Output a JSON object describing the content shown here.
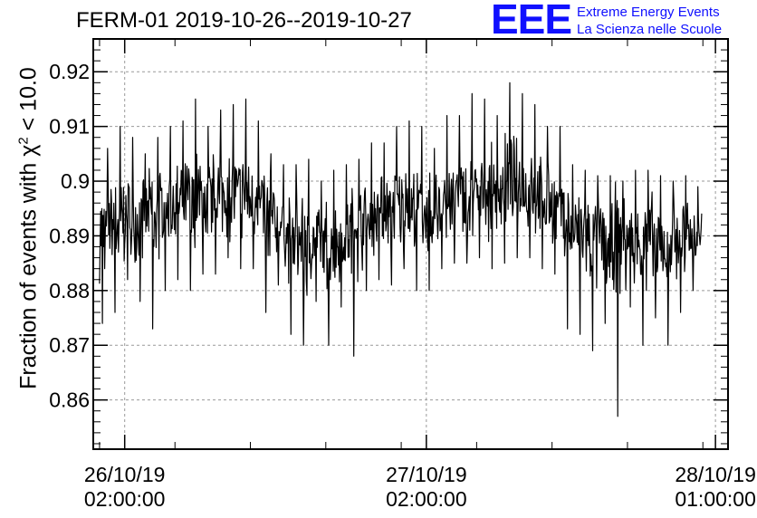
{
  "header": {
    "title": "FERM-01 2019-10-26--2019-10-27",
    "logo_text": "EEE",
    "logo_line1": "Extreme Energy Events",
    "logo_line2": "La Scienza nelle Scuole"
  },
  "colors": {
    "logo": "#1010ff",
    "series": "#000000",
    "grid": "#999999"
  },
  "chart_data": {
    "type": "line",
    "title": "FERM-01 2019-10-26--2019-10-27",
    "xlabel": "",
    "ylabel": "Fraction of events with χ² < 10.0",
    "ylabel_parts": {
      "before": "Fraction of events with χ",
      "sup": "2",
      "after": " < 10.0"
    },
    "xlim": [
      "2019-10-25T23:30:00",
      "2019-10-28T02:00:00"
    ],
    "ylim": [
      0.851,
      0.926
    ],
    "grid": true,
    "x_tick_labels": [
      {
        "x": "2019-10-26T02:00:00",
        "line1": "26/10/19",
        "line2": "02:00:00"
      },
      {
        "x": "2019-10-27T02:00:00",
        "line1": "27/10/19",
        "line2": "02:00:00"
      },
      {
        "x": "2019-10-28T01:00:00",
        "line1": "28/10/19",
        "line2": "01:00:00"
      }
    ],
    "y_ticks": [
      0.86,
      0.87,
      0.88,
      0.89,
      0.9,
      0.91,
      0.92
    ],
    "y_tick_labels": [
      "0.86",
      "0.87",
      "0.88",
      "0.89",
      "0.9",
      "0.91",
      "0.92"
    ],
    "series": [
      {
        "x": [
          "2019-10-26T00:00:00",
          "2019-10-26T01:00:00",
          "2019-10-26T02:00:00",
          "2019-10-26T03:00:00",
          "2019-10-26T04:00:00",
          "2019-10-26T05:00:00",
          "2019-10-26T06:00:00",
          "2019-10-26T07:00:00",
          "2019-10-26T08:00:00",
          "2019-10-26T09:00:00",
          "2019-10-26T10:00:00",
          "2019-10-26T11:00:00",
          "2019-10-26T12:00:00",
          "2019-10-26T13:00:00",
          "2019-10-26T14:00:00",
          "2019-10-26T15:00:00",
          "2019-10-26T16:00:00",
          "2019-10-26T17:00:00",
          "2019-10-26T18:00:00",
          "2019-10-26T19:00:00",
          "2019-10-26T20:00:00",
          "2019-10-26T21:00:00",
          "2019-10-26T22:00:00",
          "2019-10-26T23:00:00",
          "2019-10-27T00:00:00",
          "2019-10-27T01:00:00",
          "2019-10-27T02:00:00",
          "2019-10-27T03:00:00",
          "2019-10-27T04:00:00",
          "2019-10-27T05:00:00",
          "2019-10-27T06:00:00",
          "2019-10-27T07:00:00",
          "2019-10-27T08:00:00",
          "2019-10-27T09:00:00",
          "2019-10-27T10:00:00",
          "2019-10-27T11:00:00",
          "2019-10-27T12:00:00",
          "2019-10-27T13:00:00",
          "2019-10-27T14:00:00",
          "2019-10-27T15:00:00",
          "2019-10-27T16:00:00",
          "2019-10-27T17:00:00",
          "2019-10-27T18:00:00",
          "2019-10-27T19:00:00",
          "2019-10-27T20:00:00",
          "2019-10-27T21:00:00",
          "2019-10-27T22:00:00",
          "2019-10-27T23:00:00"
        ],
        "mean": [
          0.891,
          0.892,
          0.893,
          0.893,
          0.894,
          0.894,
          0.895,
          0.896,
          0.897,
          0.897,
          0.898,
          0.897,
          0.896,
          0.895,
          0.892,
          0.89,
          0.889,
          0.889,
          0.888,
          0.889,
          0.89,
          0.892,
          0.894,
          0.894,
          0.895,
          0.895,
          0.894,
          0.895,
          0.896,
          0.897,
          0.897,
          0.898,
          0.899,
          0.899,
          0.898,
          0.897,
          0.896,
          0.893,
          0.89,
          0.889,
          0.889,
          0.888,
          0.889,
          0.888,
          0.889,
          0.888,
          0.889,
          0.89
        ],
        "low": [
          0.874,
          0.876,
          0.882,
          0.878,
          0.873,
          0.88,
          0.882,
          0.88,
          0.883,
          0.883,
          0.886,
          0.884,
          0.884,
          0.876,
          0.881,
          0.872,
          0.87,
          0.878,
          0.87,
          0.877,
          0.868,
          0.88,
          0.882,
          0.881,
          0.884,
          0.88,
          0.88,
          0.884,
          0.885,
          0.885,
          0.886,
          0.884,
          0.885,
          0.886,
          0.886,
          0.884,
          0.883,
          0.873,
          0.872,
          0.869,
          0.874,
          0.857,
          0.877,
          0.87,
          0.875,
          0.87,
          0.876,
          0.88
        ],
        "high": [
          0.906,
          0.91,
          0.908,
          0.905,
          0.908,
          0.91,
          0.911,
          0.915,
          0.91,
          0.913,
          0.914,
          0.915,
          0.911,
          0.905,
          0.903,
          0.903,
          0.904,
          0.9,
          0.902,
          0.903,
          0.904,
          0.907,
          0.907,
          0.91,
          0.911,
          0.91,
          0.906,
          0.912,
          0.912,
          0.916,
          0.915,
          0.912,
          0.918,
          0.916,
          0.914,
          0.91,
          0.91,
          0.903,
          0.902,
          0.901,
          0.901,
          0.9,
          0.902,
          0.902,
          0.901,
          0.9,
          0.901,
          0.899
        ]
      }
    ]
  }
}
